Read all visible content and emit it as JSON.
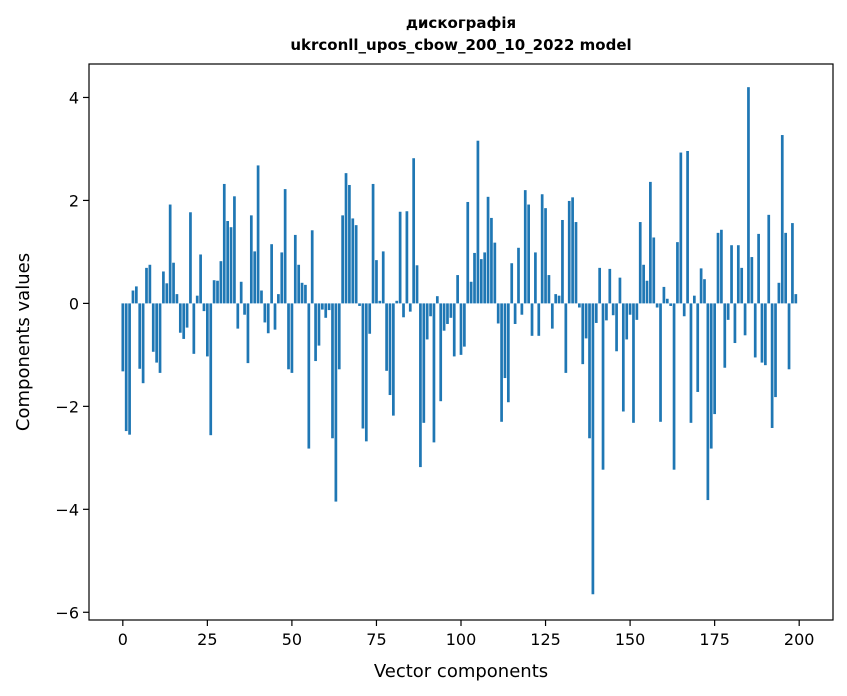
{
  "chart_data": {
    "type": "bar",
    "title": "дискографія",
    "subtitle": "ukrconll_upos_cbow_200_10_2022 model",
    "xlabel": "Vector components",
    "ylabel": "Components values",
    "xlim": [
      -10,
      210
    ],
    "ylim": [
      -6.15,
      4.65
    ],
    "xticks": [
      0,
      25,
      50,
      75,
      100,
      125,
      150,
      175,
      200
    ],
    "yticks": [
      -6,
      -4,
      -2,
      0,
      2,
      4
    ],
    "ytick_labels": [
      "−6",
      "−4",
      "−2",
      "0",
      "2",
      "4"
    ],
    "bar_color": "#1f77b4",
    "grid": false,
    "legend": "none",
    "values": [
      -1.32,
      -2.48,
      -2.55,
      0.25,
      0.33,
      -1.27,
      -1.55,
      0.69,
      0.75,
      -0.94,
      -1.15,
      -1.35,
      0.62,
      0.39,
      1.92,
      0.79,
      0.18,
      -0.57,
      -0.69,
      -0.47,
      1.77,
      -0.98,
      0.15,
      0.95,
      -0.15,
      -1.03,
      -2.56,
      0.45,
      0.44,
      0.82,
      2.32,
      1.6,
      1.48,
      2.08,
      -0.49,
      0.42,
      -0.22,
      -1.16,
      1.71,
      1.01,
      2.68,
      0.25,
      -0.37,
      -0.58,
      1.15,
      -0.51,
      0.18,
      0.99,
      2.22,
      -1.28,
      -1.35,
      1.33,
      0.75,
      0.4,
      0.36,
      -2.82,
      1.42,
      -1.12,
      -0.82,
      -0.12,
      -0.28,
      -0.13,
      -2.62,
      -3.85,
      -1.28,
      1.71,
      2.53,
      2.3,
      1.65,
      1.52,
      -0.05,
      -2.43,
      -2.68,
      -0.59,
      2.32,
      0.84,
      0.05,
      1.01,
      -1.31,
      -1.78,
      -2.18,
      0.05,
      1.78,
      -0.27,
      1.79,
      -0.16,
      2.82,
      0.74,
      -3.18,
      -2.32,
      -0.7,
      -0.25,
      -2.7,
      0.14,
      -1.9,
      -0.53,
      -0.4,
      -0.28,
      -1.03,
      0.55,
      -1.0,
      -0.84,
      1.97,
      0.42,
      0.98,
      3.16,
      0.86,
      0.99,
      2.07,
      1.66,
      1.18,
      -0.39,
      -2.3,
      -1.45,
      -1.92,
      0.78,
      -0.4,
      1.08,
      -0.22,
      2.2,
      1.92,
      -0.63,
      0.99,
      -0.63,
      2.12,
      1.85,
      0.55,
      -0.49,
      0.18,
      0.15,
      1.62,
      -1.35,
      1.99,
      2.06,
      1.58,
      -0.08,
      -1.18,
      -0.68,
      -2.62,
      -5.65,
      -0.38,
      0.69,
      -3.23,
      -0.33,
      0.67,
      -0.23,
      -0.93,
      0.5,
      -2.1,
      -0.7,
      -0.22,
      -2.32,
      -0.32,
      1.58,
      0.75,
      0.44,
      2.36,
      1.28,
      -0.08,
      -2.3,
      0.32,
      0.09,
      -0.05,
      -3.23,
      1.19,
      2.93,
      -0.25,
      2.96,
      -2.32,
      0.15,
      -1.72,
      0.68,
      0.47,
      -3.82,
      -2.82,
      -2.15,
      1.37,
      1.43,
      -1.25,
      -0.32,
      1.13,
      -0.77,
      1.13,
      0.69,
      -0.62,
      4.2,
      0.9,
      -1.05,
      1.35,
      -1.15,
      -1.2,
      1.72,
      -2.42,
      -1.82,
      0.4,
      3.27,
      1.37,
      -1.28,
      1.56,
      0.18
    ]
  }
}
